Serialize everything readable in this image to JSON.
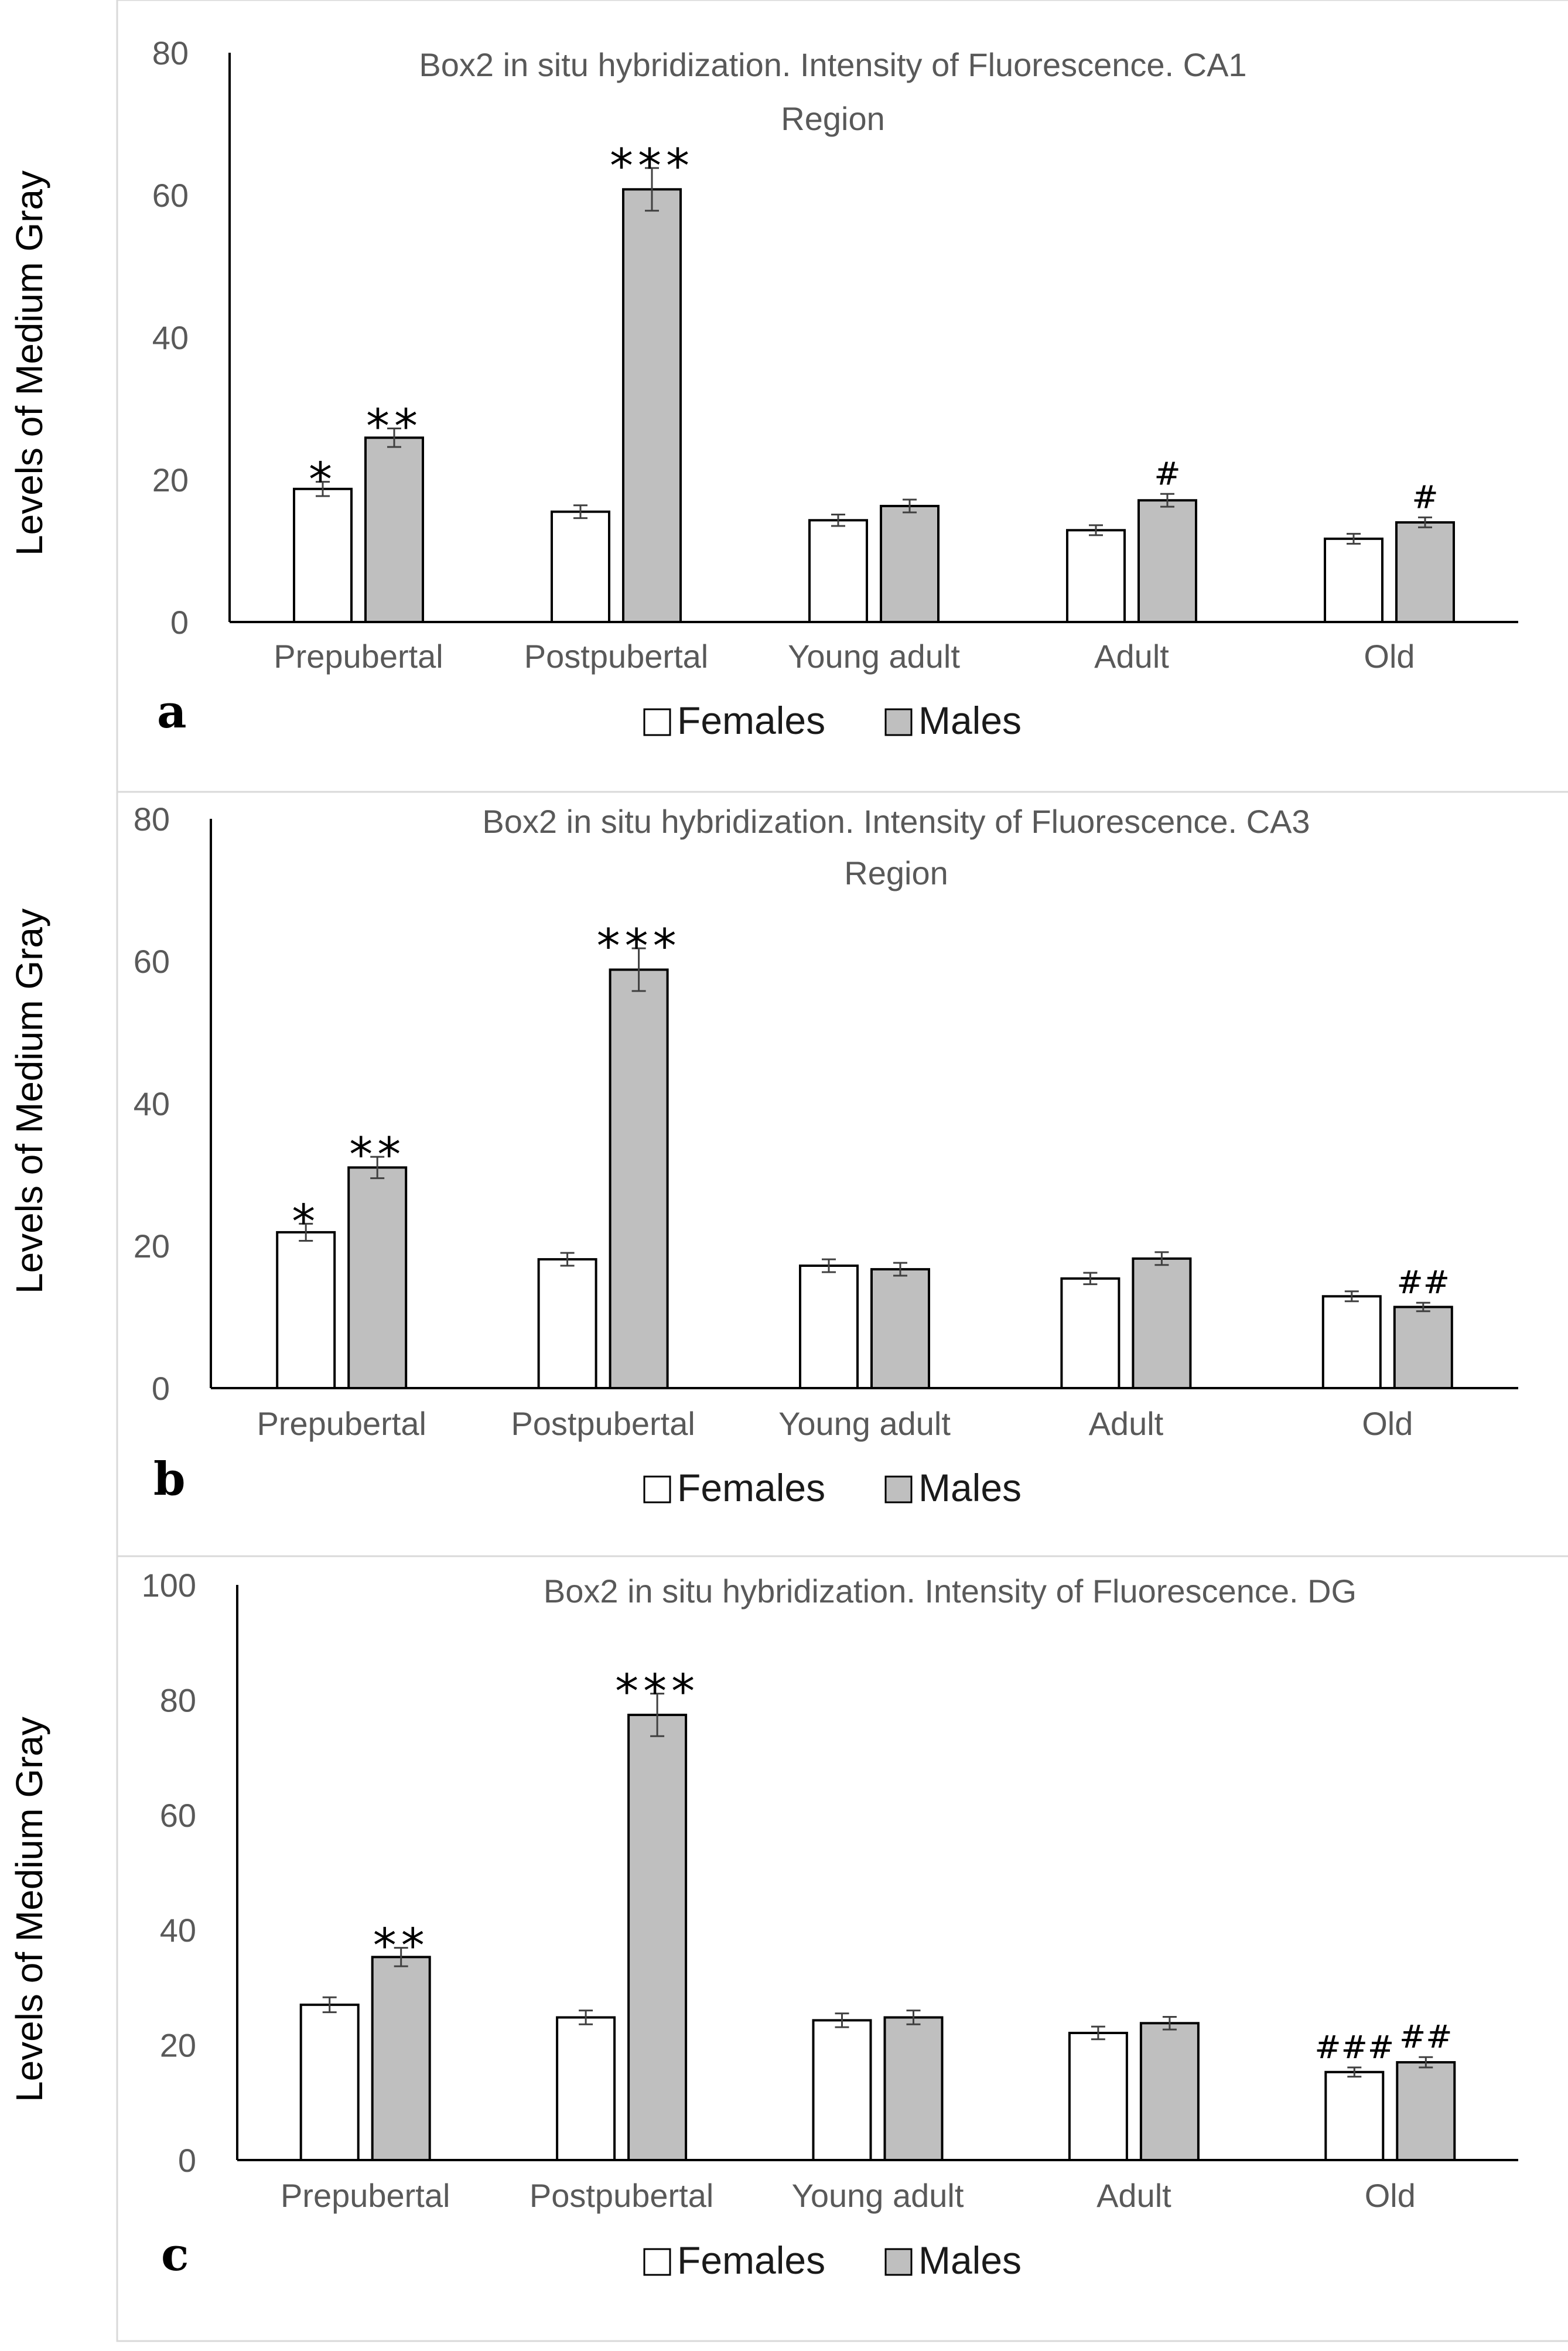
{
  "chart_data": [
    {
      "type": "bar",
      "panel_label": "a",
      "title": "Box2 in situ hybridization. Intensity of Fluorescence. CA1 Region",
      "title_lines": [
        "Box2 in situ hybridization. Intensity of Fluorescence. CA1",
        "Region"
      ],
      "ylabel": "Levels of Medium Gray",
      "xlabel": "",
      "ylim": [
        0,
        80
      ],
      "yticks": [
        0,
        20,
        40,
        60,
        80
      ],
      "categories": [
        "Prepubertal",
        "Postpubertal",
        "Young adult",
        "Adult",
        "Old"
      ],
      "series": [
        {
          "name": "Females",
          "values": [
            18.7,
            15.5,
            14.3,
            12.9,
            11.7
          ],
          "errors": [
            1.0,
            0.9,
            0.8,
            0.7,
            0.7
          ],
          "marks": [
            "*",
            "",
            "",
            "",
            ""
          ]
        },
        {
          "name": "Males",
          "values": [
            25.9,
            60.8,
            16.3,
            17.1,
            14.0
          ],
          "errors": [
            1.3,
            3.0,
            0.9,
            0.9,
            0.7
          ],
          "marks": [
            "**",
            "***",
            "",
            "#",
            "#"
          ]
        }
      ],
      "legend": [
        "Females",
        "Males"
      ]
    },
    {
      "type": "bar",
      "panel_label": "b",
      "title": "Box2 in situ hybridization. Intensity of Fluorescence. CA3 Region",
      "title_lines": [
        "Box2 in situ hybridization. Intensity of Fluorescence. CA3",
        "Region"
      ],
      "ylabel": "Levels of Medium Gray",
      "xlabel": "",
      "ylim": [
        0,
        80
      ],
      "yticks": [
        0,
        20,
        40,
        60,
        80
      ],
      "categories": [
        "Prepubertal",
        "Postpubertal",
        "Young adult",
        "Adult",
        "Old"
      ],
      "series": [
        {
          "name": "Females",
          "values": [
            21.9,
            18.1,
            17.2,
            15.4,
            12.9
          ],
          "errors": [
            1.2,
            0.9,
            0.9,
            0.8,
            0.7
          ],
          "marks": [
            "*",
            "",
            "",
            "",
            ""
          ]
        },
        {
          "name": "Males",
          "values": [
            31.0,
            58.8,
            16.7,
            18.2,
            11.4
          ],
          "errors": [
            1.5,
            3.0,
            0.9,
            0.9,
            0.6
          ],
          "marks": [
            "**",
            "***",
            "",
            "",
            "##"
          ]
        }
      ],
      "legend": [
        "Females",
        "Males"
      ]
    },
    {
      "type": "bar",
      "panel_label": "c",
      "title": "Box2 in situ hybridization. Intensity of Fluorescence. DG",
      "title_lines": [
        "Box2 in situ hybridization. Intensity of Fluorescence. DG"
      ],
      "ylabel": "Levels of Medium Gray",
      "xlabel": "",
      "ylim": [
        0,
        100
      ],
      "yticks": [
        0,
        20,
        40,
        60,
        80,
        100
      ],
      "categories": [
        "Prepubertal",
        "Postpubertal",
        "Young adult",
        "Adult",
        "Old"
      ],
      "series": [
        {
          "name": "Females",
          "values": [
            27.0,
            24.8,
            24.3,
            22.1,
            15.3
          ],
          "errors": [
            1.3,
            1.2,
            1.2,
            1.1,
            0.8
          ],
          "marks": [
            "",
            "",
            "",
            "",
            "###"
          ]
        },
        {
          "name": "Males",
          "values": [
            35.3,
            77.4,
            24.8,
            23.8,
            17.0
          ],
          "errors": [
            1.6,
            3.7,
            1.2,
            1.1,
            0.9
          ],
          "marks": [
            "**",
            "***",
            "",
            "",
            "##"
          ]
        }
      ],
      "legend": [
        "Females",
        "Males"
      ]
    }
  ],
  "colors": {
    "females_fill": "#ffffff",
    "males_fill": "#bfbfbf",
    "bar_stroke": "#000000",
    "axis": "#000000",
    "panel_border": "#d9d9d9",
    "tick_text": "#595959"
  }
}
